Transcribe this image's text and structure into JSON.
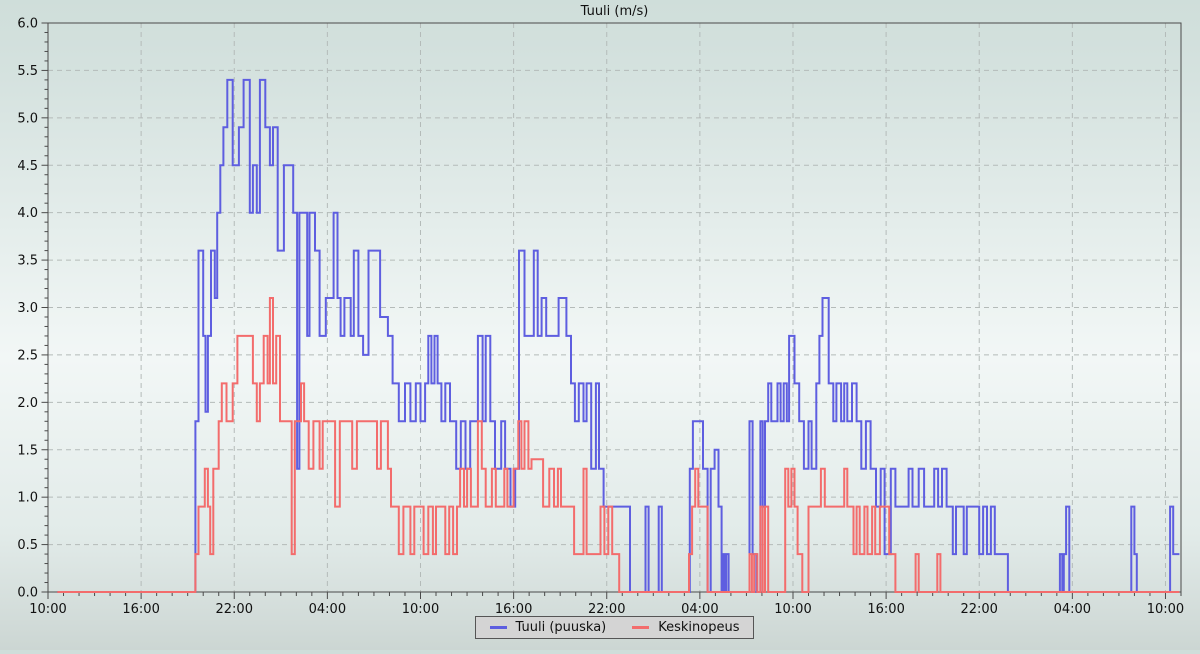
{
  "chart_data": {
    "type": "line",
    "style": "step",
    "title": "Tuuli (m/s)",
    "grid": "dashed",
    "legend_position": "bottom-center",
    "x_axis": {
      "unit": "time",
      "range_hours": [
        0,
        73
      ],
      "major_interval_hours": 6,
      "minor_interval_hours": 1,
      "tick_labels": [
        "10:00",
        "16:00",
        "22:00",
        "04:00",
        "10:00",
        "16:00",
        "22:00",
        "04:00",
        "10:00",
        "16:00",
        "22:00",
        "04:00",
        "10:00"
      ]
    },
    "y_axis": {
      "min": 0.0,
      "max": 6.0,
      "major_step": 0.5,
      "minor_step": 0.1
    },
    "series": [
      {
        "name": "Tuuli (puuska)",
        "color": "#5e5ee0",
        "end_hour": 72.9,
        "points": [
          [
            0.6,
            0
          ],
          [
            9.5,
            1.8
          ],
          [
            9.7,
            3.6
          ],
          [
            10.0,
            2.7
          ],
          [
            10.15,
            1.9
          ],
          [
            10.3,
            2.7
          ],
          [
            10.5,
            3.6
          ],
          [
            10.75,
            3.1
          ],
          [
            10.9,
            4.0
          ],
          [
            11.1,
            4.5
          ],
          [
            11.3,
            4.9
          ],
          [
            11.55,
            5.4
          ],
          [
            11.9,
            4.5
          ],
          [
            12.3,
            4.9
          ],
          [
            12.6,
            5.4
          ],
          [
            13.0,
            4.0
          ],
          [
            13.2,
            4.5
          ],
          [
            13.45,
            4.0
          ],
          [
            13.65,
            5.4
          ],
          [
            14.0,
            4.9
          ],
          [
            14.3,
            4.5
          ],
          [
            14.5,
            4.9
          ],
          [
            14.8,
            3.6
          ],
          [
            15.2,
            4.5
          ],
          [
            15.8,
            4.0
          ],
          [
            16.05,
            1.3
          ],
          [
            16.2,
            4.0
          ],
          [
            16.7,
            2.7
          ],
          [
            16.85,
            4.0
          ],
          [
            17.2,
            3.6
          ],
          [
            17.5,
            2.7
          ],
          [
            17.9,
            3.1
          ],
          [
            18.4,
            4.0
          ],
          [
            18.65,
            3.1
          ],
          [
            18.85,
            2.7
          ],
          [
            19.1,
            3.1
          ],
          [
            19.5,
            2.7
          ],
          [
            19.7,
            3.6
          ],
          [
            20.0,
            2.7
          ],
          [
            20.3,
            2.5
          ],
          [
            20.65,
            3.6
          ],
          [
            21.4,
            2.9
          ],
          [
            21.9,
            2.7
          ],
          [
            22.2,
            2.2
          ],
          [
            22.6,
            1.8
          ],
          [
            23.0,
            2.2
          ],
          [
            23.35,
            1.8
          ],
          [
            23.7,
            2.2
          ],
          [
            24.0,
            1.8
          ],
          [
            24.3,
            2.2
          ],
          [
            24.5,
            2.7
          ],
          [
            24.7,
            2.2
          ],
          [
            24.9,
            2.7
          ],
          [
            25.1,
            2.2
          ],
          [
            25.35,
            1.8
          ],
          [
            25.6,
            2.2
          ],
          [
            25.9,
            1.8
          ],
          [
            26.3,
            1.3
          ],
          [
            26.6,
            1.8
          ],
          [
            26.9,
            1.3
          ],
          [
            27.2,
            1.8
          ],
          [
            27.7,
            2.7
          ],
          [
            28.0,
            1.8
          ],
          [
            28.2,
            2.7
          ],
          [
            28.5,
            1.8
          ],
          [
            28.8,
            1.3
          ],
          [
            29.2,
            1.8
          ],
          [
            29.45,
            1.3
          ],
          [
            29.8,
            0.9
          ],
          [
            30.1,
            1.3
          ],
          [
            30.35,
            3.6
          ],
          [
            30.7,
            2.7
          ],
          [
            31.3,
            3.6
          ],
          [
            31.55,
            2.7
          ],
          [
            31.8,
            3.1
          ],
          [
            32.1,
            2.7
          ],
          [
            32.9,
            3.1
          ],
          [
            33.4,
            2.7
          ],
          [
            33.7,
            2.2
          ],
          [
            33.95,
            1.8
          ],
          [
            34.2,
            2.2
          ],
          [
            34.5,
            1.8
          ],
          [
            34.7,
            2.2
          ],
          [
            35.0,
            1.3
          ],
          [
            35.3,
            2.2
          ],
          [
            35.5,
            1.3
          ],
          [
            35.8,
            0.9
          ],
          [
            37.5,
            0
          ],
          [
            38.5,
            0.9
          ],
          [
            38.7,
            0
          ],
          [
            39.35,
            0.9
          ],
          [
            39.55,
            0
          ],
          [
            41.35,
            1.3
          ],
          [
            41.55,
            1.8
          ],
          [
            42.2,
            1.3
          ],
          [
            42.5,
            0
          ],
          [
            42.7,
            1.3
          ],
          [
            42.95,
            1.5
          ],
          [
            43.2,
            0.9
          ],
          [
            43.4,
            0
          ],
          [
            43.5,
            0.4
          ],
          [
            43.6,
            0
          ],
          [
            43.7,
            0.4
          ],
          [
            43.85,
            0
          ],
          [
            45.2,
            1.8
          ],
          [
            45.4,
            0.4
          ],
          [
            45.65,
            0
          ],
          [
            45.9,
            1.8
          ],
          [
            46.05,
            0.9
          ],
          [
            46.2,
            1.8
          ],
          [
            46.4,
            2.2
          ],
          [
            46.6,
            1.8
          ],
          [
            47.0,
            2.2
          ],
          [
            47.2,
            1.8
          ],
          [
            47.4,
            2.2
          ],
          [
            47.6,
            1.8
          ],
          [
            47.75,
            2.7
          ],
          [
            48.1,
            2.2
          ],
          [
            48.4,
            1.8
          ],
          [
            48.7,
            1.3
          ],
          [
            49.0,
            1.8
          ],
          [
            49.2,
            1.3
          ],
          [
            49.5,
            2.2
          ],
          [
            49.7,
            2.7
          ],
          [
            49.9,
            3.1
          ],
          [
            50.3,
            2.2
          ],
          [
            50.6,
            1.8
          ],
          [
            50.8,
            2.2
          ],
          [
            51.1,
            1.8
          ],
          [
            51.3,
            2.2
          ],
          [
            51.5,
            1.8
          ],
          [
            51.8,
            2.2
          ],
          [
            52.1,
            1.8
          ],
          [
            52.4,
            1.3
          ],
          [
            52.7,
            1.8
          ],
          [
            53.0,
            1.3
          ],
          [
            53.35,
            0.9
          ],
          [
            53.65,
            1.3
          ],
          [
            53.9,
            0.4
          ],
          [
            54.3,
            1.3
          ],
          [
            54.6,
            0.9
          ],
          [
            55.45,
            1.3
          ],
          [
            55.7,
            0.9
          ],
          [
            56.1,
            1.3
          ],
          [
            56.45,
            0.9
          ],
          [
            57.1,
            1.3
          ],
          [
            57.35,
            0.9
          ],
          [
            57.6,
            1.3
          ],
          [
            57.9,
            0.9
          ],
          [
            58.3,
            0.4
          ],
          [
            58.5,
            0.9
          ],
          [
            59.0,
            0.4
          ],
          [
            59.2,
            0.9
          ],
          [
            60.0,
            0.4
          ],
          [
            60.25,
            0.9
          ],
          [
            60.5,
            0.4
          ],
          [
            60.75,
            0.9
          ],
          [
            61.0,
            0.4
          ],
          [
            61.85,
            0
          ],
          [
            65.2,
            0.4
          ],
          [
            65.35,
            0
          ],
          [
            65.45,
            0.4
          ],
          [
            65.6,
            0.9
          ],
          [
            65.8,
            0
          ],
          [
            69.8,
            0.9
          ],
          [
            70.0,
            0.4
          ],
          [
            70.15,
            0
          ],
          [
            72.3,
            0.9
          ],
          [
            72.5,
            0.4
          ]
        ]
      },
      {
        "name": "Keskinopeus",
        "color": "#f36c6c",
        "end_hour": 72.9,
        "points": [
          [
            0.6,
            0
          ],
          [
            9.5,
            0.4
          ],
          [
            9.7,
            0.9
          ],
          [
            10.1,
            1.3
          ],
          [
            10.3,
            0.9
          ],
          [
            10.45,
            0.4
          ],
          [
            10.65,
            1.3
          ],
          [
            11.0,
            1.8
          ],
          [
            11.2,
            2.2
          ],
          [
            11.5,
            1.8
          ],
          [
            11.9,
            2.2
          ],
          [
            12.2,
            2.7
          ],
          [
            13.2,
            2.2
          ],
          [
            13.45,
            1.8
          ],
          [
            13.65,
            2.2
          ],
          [
            13.9,
            2.7
          ],
          [
            14.15,
            2.2
          ],
          [
            14.3,
            3.1
          ],
          [
            14.5,
            2.2
          ],
          [
            14.7,
            2.7
          ],
          [
            14.95,
            1.8
          ],
          [
            15.7,
            0.4
          ],
          [
            15.9,
            1.8
          ],
          [
            16.3,
            2.2
          ],
          [
            16.5,
            1.8
          ],
          [
            16.8,
            1.3
          ],
          [
            17.1,
            1.8
          ],
          [
            17.5,
            1.3
          ],
          [
            17.7,
            1.8
          ],
          [
            18.5,
            0.9
          ],
          [
            18.8,
            1.8
          ],
          [
            19.6,
            1.3
          ],
          [
            19.9,
            1.8
          ],
          [
            21.2,
            1.3
          ],
          [
            21.45,
            1.8
          ],
          [
            21.9,
            1.3
          ],
          [
            22.1,
            0.9
          ],
          [
            22.6,
            0.4
          ],
          [
            22.9,
            0.9
          ],
          [
            23.35,
            0.4
          ],
          [
            23.6,
            0.9
          ],
          [
            24.2,
            0.4
          ],
          [
            24.5,
            0.9
          ],
          [
            24.8,
            0.4
          ],
          [
            25.0,
            0.9
          ],
          [
            25.6,
            0.4
          ],
          [
            25.85,
            0.9
          ],
          [
            26.1,
            0.4
          ],
          [
            26.35,
            0.9
          ],
          [
            26.55,
            1.3
          ],
          [
            26.8,
            0.9
          ],
          [
            27.0,
            1.3
          ],
          [
            27.25,
            0.9
          ],
          [
            27.7,
            1.8
          ],
          [
            27.95,
            1.3
          ],
          [
            28.2,
            0.9
          ],
          [
            28.6,
            1.3
          ],
          [
            28.85,
            0.9
          ],
          [
            29.4,
            1.3
          ],
          [
            29.6,
            0.9
          ],
          [
            30.0,
            1.3
          ],
          [
            30.3,
            1.8
          ],
          [
            30.5,
            1.3
          ],
          [
            30.7,
            1.8
          ],
          [
            30.95,
            1.3
          ],
          [
            31.15,
            1.4
          ],
          [
            31.9,
            0.9
          ],
          [
            32.3,
            1.3
          ],
          [
            32.6,
            0.9
          ],
          [
            32.85,
            1.3
          ],
          [
            33.05,
            0.9
          ],
          [
            33.9,
            0.4
          ],
          [
            34.5,
            1.3
          ],
          [
            34.7,
            0.4
          ],
          [
            35.6,
            0.9
          ],
          [
            35.85,
            0.4
          ],
          [
            36.1,
            0.9
          ],
          [
            36.35,
            0.4
          ],
          [
            36.8,
            0
          ],
          [
            41.3,
            0.4
          ],
          [
            41.5,
            0.9
          ],
          [
            41.7,
            1.3
          ],
          [
            41.9,
            0.9
          ],
          [
            42.5,
            0
          ],
          [
            45.2,
            0.4
          ],
          [
            45.35,
            0
          ],
          [
            45.5,
            0.4
          ],
          [
            45.7,
            0
          ],
          [
            45.9,
            0.9
          ],
          [
            46.05,
            0
          ],
          [
            46.2,
            0.9
          ],
          [
            46.4,
            0
          ],
          [
            47.5,
            1.3
          ],
          [
            47.7,
            0.9
          ],
          [
            47.9,
            1.3
          ],
          [
            48.1,
            0.9
          ],
          [
            48.3,
            0.4
          ],
          [
            48.6,
            0
          ],
          [
            49.0,
            0.9
          ],
          [
            49.8,
            1.3
          ],
          [
            50.05,
            0.9
          ],
          [
            51.3,
            1.3
          ],
          [
            51.5,
            0.9
          ],
          [
            51.9,
            0.4
          ],
          [
            52.1,
            0.9
          ],
          [
            52.3,
            0.4
          ],
          [
            52.6,
            0.9
          ],
          [
            52.8,
            0.4
          ],
          [
            53.1,
            0.9
          ],
          [
            53.3,
            0.4
          ],
          [
            53.6,
            0.9
          ],
          [
            54.2,
            0.4
          ],
          [
            54.6,
            0
          ],
          [
            55.9,
            0.4
          ],
          [
            56.1,
            0
          ],
          [
            57.3,
            0.4
          ],
          [
            57.5,
            0
          ]
        ]
      }
    ],
    "colors": {
      "frame": "#4a4a4a",
      "grid": "#b4bbb9",
      "text": "#111111",
      "legend_bg": "#d4d4d4",
      "legend_border": "#555555"
    }
  },
  "legend": {
    "items": [
      {
        "label": "Tuuli (puuska)"
      },
      {
        "label": "Keskinopeus"
      }
    ]
  }
}
